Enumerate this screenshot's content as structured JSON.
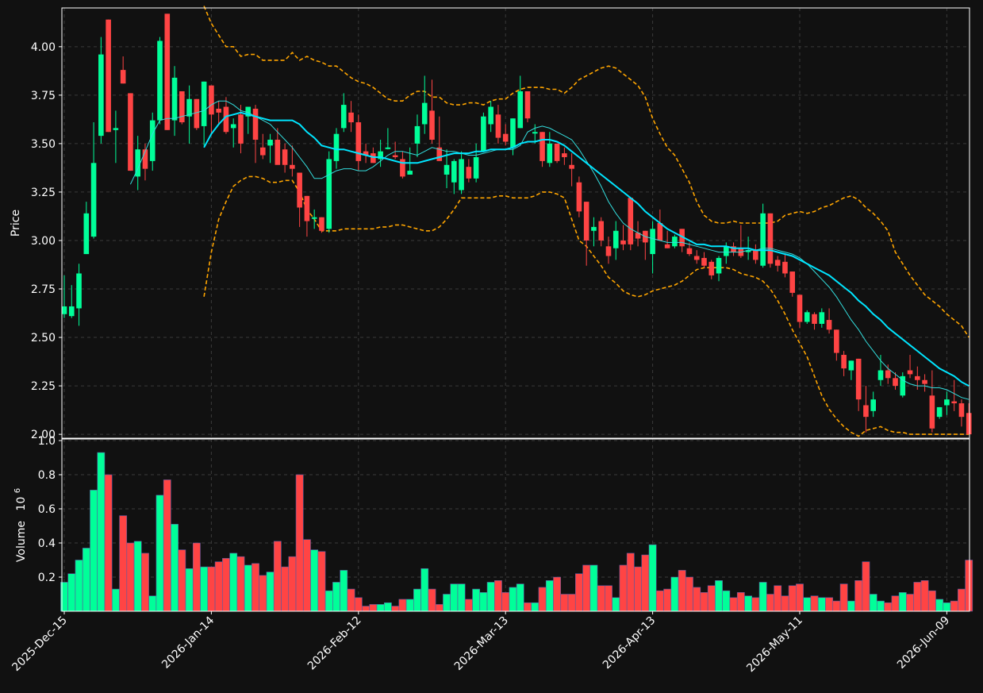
{
  "chart_data": {
    "type": "candlestick",
    "background_color": "#111111",
    "up_color": "#00ff99",
    "down_color": "#ff4444",
    "sma_fast_color": "#33dddd",
    "sma_slow_color": "#00e5ff",
    "bollinger_color": "#ffa500",
    "grid": true,
    "price_panel": {
      "ylabel": "Price",
      "ylim": [
        1.98,
        4.2
      ],
      "yticks": [
        "2.00",
        "2.25",
        "2.50",
        "2.75",
        "3.00",
        "3.25",
        "3.50",
        "3.75",
        "4.00"
      ]
    },
    "volume_panel": {
      "ylabel": "Volume",
      "multiplier_base": "10",
      "multiplier_exp": "6",
      "ylim": [
        0,
        1.0
      ],
      "yticks": [
        "0.2",
        "0.4",
        "0.6",
        "0.8",
        "1.0"
      ]
    },
    "x_ticks": [
      {
        "label": "2025-Dec-15",
        "index": 0
      },
      {
        "label": "2026-Jan-14",
        "index": 20
      },
      {
        "label": "2026-Feb-12",
        "index": 40
      },
      {
        "label": "2026-Mar-13",
        "index": 60
      },
      {
        "label": "2026-Apr-13",
        "index": 80
      },
      {
        "label": "2026-May-11",
        "index": 100
      },
      {
        "label": "2026-Jun-09",
        "index": 120
      }
    ],
    "candles_ohlc": [
      [
        2.62,
        2.82,
        2.6,
        2.66
      ],
      [
        2.61,
        2.77,
        2.6,
        2.66
      ],
      [
        2.65,
        2.88,
        2.56,
        2.83
      ],
      [
        2.93,
        3.2,
        2.93,
        3.14
      ],
      [
        3.02,
        3.61,
        3.01,
        3.4
      ],
      [
        3.54,
        4.05,
        3.5,
        3.96
      ],
      [
        4.14,
        4.14,
        3.56,
        3.56
      ],
      [
        3.57,
        3.67,
        3.4,
        3.58
      ],
      [
        3.88,
        3.95,
        3.81,
        3.81
      ],
      [
        3.76,
        3.76,
        3.36,
        3.36
      ],
      [
        3.33,
        3.54,
        3.26,
        3.47
      ],
      [
        3.47,
        3.5,
        3.31,
        3.37
      ],
      [
        3.41,
        3.66,
        3.36,
        3.62
      ],
      [
        3.62,
        4.05,
        3.6,
        4.03
      ],
      [
        4.17,
        4.17,
        3.57,
        3.57
      ],
      [
        3.62,
        3.9,
        3.54,
        3.84
      ],
      [
        3.77,
        3.77,
        3.6,
        3.61
      ],
      [
        3.64,
        3.8,
        3.5,
        3.73
      ],
      [
        3.73,
        3.73,
        3.57,
        3.58
      ],
      [
        3.59,
        3.82,
        3.49,
        3.82
      ],
      [
        3.8,
        3.8,
        3.55,
        3.65
      ],
      [
        3.68,
        3.72,
        3.6,
        3.66
      ],
      [
        3.69,
        3.74,
        3.55,
        3.56
      ],
      [
        3.58,
        3.63,
        3.48,
        3.6
      ],
      [
        3.65,
        3.7,
        3.45,
        3.5
      ],
      [
        3.64,
        3.69,
        3.55,
        3.69
      ],
      [
        3.68,
        3.7,
        3.4,
        3.52
      ],
      [
        3.48,
        3.55,
        3.42,
        3.44
      ],
      [
        3.49,
        3.55,
        3.4,
        3.52
      ],
      [
        3.52,
        3.58,
        3.4,
        3.39
      ],
      [
        3.47,
        3.5,
        3.35,
        3.39
      ],
      [
        3.39,
        3.49,
        3.33,
        3.37
      ],
      [
        3.35,
        3.35,
        3.07,
        3.17
      ],
      [
        3.23,
        3.23,
        3.02,
        3.1
      ],
      [
        3.12,
        3.16,
        3.06,
        3.12
      ],
      [
        3.12,
        3.12,
        3.04,
        3.05
      ],
      [
        3.06,
        3.46,
        3.04,
        3.42
      ],
      [
        3.41,
        3.58,
        3.37,
        3.55
      ],
      [
        3.58,
        3.76,
        3.56,
        3.7
      ],
      [
        3.66,
        3.72,
        3.56,
        3.61
      ],
      [
        3.61,
        3.65,
        3.36,
        3.41
      ],
      [
        3.46,
        3.5,
        3.4,
        3.44
      ],
      [
        3.45,
        3.48,
        3.4,
        3.4
      ],
      [
        3.42,
        3.52,
        3.38,
        3.46
      ],
      [
        3.48,
        3.58,
        3.47,
        3.48
      ],
      [
        3.44,
        3.51,
        3.42,
        3.43
      ],
      [
        3.42,
        3.46,
        3.32,
        3.33
      ],
      [
        3.34,
        3.48,
        3.34,
        3.36
      ],
      [
        3.5,
        3.65,
        3.43,
        3.59
      ],
      [
        3.6,
        3.85,
        3.55,
        3.71
      ],
      [
        3.67,
        3.83,
        3.5,
        3.52
      ],
      [
        3.48,
        3.64,
        3.46,
        3.41
      ],
      [
        3.34,
        3.47,
        3.27,
        3.39
      ],
      [
        3.3,
        3.42,
        3.24,
        3.41
      ],
      [
        3.26,
        3.46,
        3.24,
        3.42
      ],
      [
        3.38,
        3.42,
        3.3,
        3.32
      ],
      [
        3.32,
        3.5,
        3.3,
        3.43
      ],
      [
        3.46,
        3.66,
        3.46,
        3.64
      ],
      [
        3.6,
        3.72,
        3.56,
        3.69
      ],
      [
        3.65,
        3.7,
        3.5,
        3.53
      ],
      [
        3.55,
        3.6,
        3.49,
        3.51
      ],
      [
        3.48,
        3.63,
        3.44,
        3.63
      ],
      [
        3.58,
        3.85,
        3.58,
        3.77
      ],
      [
        3.77,
        3.77,
        3.61,
        3.63
      ],
      [
        3.56,
        3.6,
        3.5,
        3.56
      ],
      [
        3.56,
        3.56,
        3.38,
        3.41
      ],
      [
        3.4,
        3.56,
        3.38,
        3.5
      ],
      [
        3.5,
        3.5,
        3.4,
        3.41
      ],
      [
        3.45,
        3.48,
        3.39,
        3.43
      ],
      [
        3.39,
        3.45,
        3.28,
        3.37
      ],
      [
        3.3,
        3.33,
        3.12,
        3.15
      ],
      [
        3.2,
        3.2,
        2.87,
        3.0
      ],
      [
        3.05,
        3.12,
        2.97,
        3.07
      ],
      [
        3.1,
        3.12,
        2.97,
        3.0
      ],
      [
        2.97,
        3.02,
        2.88,
        2.92
      ],
      [
        2.96,
        3.1,
        2.9,
        3.05
      ],
      [
        3.0,
        3.08,
        2.95,
        2.98
      ],
      [
        3.22,
        3.22,
        2.95,
        2.98
      ],
      [
        3.04,
        3.1,
        2.97,
        3.01
      ],
      [
        3.05,
        3.05,
        2.9,
        2.99
      ],
      [
        2.93,
        3.1,
        2.83,
        3.06
      ],
      [
        3.09,
        3.16,
        3.01,
        3.0
      ],
      [
        2.98,
        3.05,
        2.96,
        2.96
      ],
      [
        2.97,
        3.03,
        2.96,
        3.02
      ],
      [
        3.06,
        3.06,
        2.94,
        2.97
      ],
      [
        2.96,
        2.99,
        2.92,
        2.93
      ],
      [
        2.92,
        2.95,
        2.88,
        2.9
      ],
      [
        2.91,
        2.94,
        2.86,
        2.87
      ],
      [
        2.89,
        2.9,
        2.8,
        2.82
      ],
      [
        2.83,
        2.92,
        2.79,
        2.91
      ],
      [
        2.92,
        2.99,
        2.88,
        2.97
      ],
      [
        2.97,
        2.99,
        2.92,
        2.94
      ],
      [
        2.96,
        3.08,
        2.91,
        2.92
      ],
      [
        2.94,
        3.02,
        2.9,
        2.95
      ],
      [
        2.95,
        2.98,
        2.88,
        2.9
      ],
      [
        2.87,
        3.19,
        2.86,
        3.14
      ],
      [
        3.14,
        3.14,
        2.86,
        2.88
      ],
      [
        2.9,
        2.92,
        2.84,
        2.87
      ],
      [
        2.89,
        2.93,
        2.81,
        2.83
      ],
      [
        2.84,
        2.84,
        2.71,
        2.73
      ],
      [
        2.72,
        2.72,
        2.55,
        2.58
      ],
      [
        2.58,
        2.64,
        2.57,
        2.63
      ],
      [
        2.62,
        2.63,
        2.54,
        2.57
      ],
      [
        2.57,
        2.65,
        2.55,
        2.63
      ],
      [
        2.59,
        2.65,
        2.52,
        2.54
      ],
      [
        2.54,
        2.54,
        2.38,
        2.42
      ],
      [
        2.41,
        2.43,
        2.3,
        2.34
      ],
      [
        2.33,
        2.38,
        2.28,
        2.38
      ],
      [
        2.39,
        2.39,
        2.12,
        2.18
      ],
      [
        2.15,
        2.25,
        2.01,
        2.09
      ],
      [
        2.12,
        2.22,
        2.09,
        2.18
      ],
      [
        2.28,
        2.41,
        2.25,
        2.33
      ],
      [
        2.33,
        2.36,
        2.26,
        2.29
      ],
      [
        2.29,
        2.32,
        2.23,
        2.25
      ],
      [
        2.2,
        2.32,
        2.19,
        2.3
      ],
      [
        2.33,
        2.41,
        2.29,
        2.31
      ],
      [
        2.3,
        2.35,
        2.23,
        2.28
      ],
      [
        2.28,
        2.31,
        2.22,
        2.26
      ],
      [
        2.2,
        2.33,
        2.01,
        2.03
      ],
      [
        2.09,
        2.14,
        2.08,
        2.14
      ],
      [
        2.15,
        2.22,
        2.1,
        2.18
      ],
      [
        2.17,
        2.28,
        2.12,
        2.16
      ],
      [
        2.16,
        2.18,
        2.04,
        2.09
      ],
      [
        2.11,
        2.16,
        2.0,
        2.0
      ]
    ],
    "volume": [
      0.17,
      0.22,
      0.3,
      0.37,
      0.71,
      0.93,
      0.8,
      0.13,
      0.56,
      0.4,
      0.41,
      0.34,
      0.09,
      0.68,
      0.77,
      0.51,
      0.36,
      0.25,
      0.4,
      0.26,
      0.26,
      0.29,
      0.31,
      0.34,
      0.32,
      0.27,
      0.28,
      0.21,
      0.23,
      0.41,
      0.26,
      0.32,
      0.8,
      0.42,
      0.36,
      0.35,
      0.12,
      0.17,
      0.24,
      0.13,
      0.08,
      0.03,
      0.04,
      0.04,
      0.05,
      0.03,
      0.07,
      0.07,
      0.13,
      0.25,
      0.13,
      0.04,
      0.1,
      0.16,
      0.16,
      0.07,
      0.13,
      0.11,
      0.17,
      0.18,
      0.11,
      0.14,
      0.16,
      0.05,
      0.05,
      0.14,
      0.18,
      0.2,
      0.1,
      0.1,
      0.22,
      0.27,
      0.27,
      0.15,
      0.15,
      0.08,
      0.27,
      0.34,
      0.26,
      0.33,
      0.39,
      0.12,
      0.13,
      0.2,
      0.24,
      0.2,
      0.14,
      0.11,
      0.15,
      0.18,
      0.12,
      0.08,
      0.11,
      0.09,
      0.08,
      0.17,
      0.1,
      0.15,
      0.09,
      0.15,
      0.16,
      0.08,
      0.09,
      0.08,
      0.08,
      0.06,
      0.16,
      0.06,
      0.18,
      0.29,
      0.1,
      0.06,
      0.05,
      0.09,
      0.11,
      0.1,
      0.17,
      0.18,
      0.12,
      0.07,
      0.05,
      0.06,
      0.13,
      0.3
    ],
    "sma_fast": [
      null,
      null,
      null,
      null,
      null,
      null,
      null,
      null,
      null,
      3.29,
      3.37,
      3.46,
      3.55,
      3.62,
      3.63,
      3.63,
      3.64,
      3.65,
      3.66,
      3.67,
      3.7,
      3.72,
      3.72,
      3.7,
      3.67,
      3.66,
      3.64,
      3.62,
      3.6,
      3.56,
      3.52,
      3.48,
      3.43,
      3.38,
      3.32,
      3.32,
      3.34,
      3.36,
      3.37,
      3.37,
      3.36,
      3.36,
      3.38,
      3.41,
      3.44,
      3.46,
      3.46,
      3.45,
      3.44,
      3.46,
      3.48,
      3.47,
      3.46,
      3.46,
      3.45,
      3.44,
      3.44,
      3.45,
      3.46,
      3.47,
      3.47,
      3.47,
      3.49,
      3.56,
      3.58,
      3.59,
      3.58,
      3.56,
      3.54,
      3.52,
      3.47,
      3.41,
      3.35,
      3.28,
      3.2,
      3.14,
      3.09,
      3.06,
      3.04,
      3.02,
      3.01,
      3.0,
      2.99,
      2.99,
      2.99,
      2.98,
      2.97,
      2.96,
      2.95,
      2.94,
      2.94,
      2.94,
      2.94,
      2.95,
      2.95,
      2.96,
      2.96,
      2.95,
      2.94,
      2.93,
      2.91,
      2.88,
      2.84,
      2.8,
      2.76,
      2.71,
      2.65,
      2.59,
      2.54,
      2.48,
      2.43,
      2.38,
      2.34,
      2.31,
      2.28,
      2.26,
      2.25,
      2.25,
      2.24,
      2.24,
      2.23,
      2.21,
      2.19,
      2.18
    ],
    "sma_slow": [
      null,
      null,
      null,
      null,
      null,
      null,
      null,
      null,
      null,
      null,
      null,
      null,
      null,
      null,
      null,
      null,
      null,
      null,
      null,
      3.48,
      3.55,
      3.6,
      3.64,
      3.65,
      3.66,
      3.65,
      3.64,
      3.63,
      3.62,
      3.62,
      3.62,
      3.62,
      3.6,
      3.56,
      3.53,
      3.49,
      3.48,
      3.47,
      3.47,
      3.46,
      3.45,
      3.44,
      3.43,
      3.43,
      3.42,
      3.41,
      3.4,
      3.4,
      3.4,
      3.41,
      3.42,
      3.43,
      3.44,
      3.45,
      3.45,
      3.45,
      3.46,
      3.46,
      3.47,
      3.47,
      3.47,
      3.48,
      3.5,
      3.51,
      3.51,
      3.52,
      3.52,
      3.51,
      3.49,
      3.46,
      3.43,
      3.4,
      3.37,
      3.34,
      3.31,
      3.28,
      3.25,
      3.22,
      3.19,
      3.15,
      3.12,
      3.09,
      3.06,
      3.04,
      3.02,
      3.0,
      2.98,
      2.98,
      2.97,
      2.97,
      2.97,
      2.96,
      2.96,
      2.96,
      2.95,
      2.95,
      2.95,
      2.94,
      2.93,
      2.92,
      2.9,
      2.88,
      2.86,
      2.84,
      2.82,
      2.79,
      2.76,
      2.73,
      2.69,
      2.66,
      2.62,
      2.59,
      2.55,
      2.52,
      2.49,
      2.46,
      2.43,
      2.4,
      2.37,
      2.34,
      2.32,
      2.3,
      2.27,
      2.25
    ],
    "bb_upper": [
      null,
      null,
      null,
      null,
      null,
      null,
      null,
      null,
      null,
      null,
      null,
      null,
      null,
      null,
      null,
      null,
      null,
      null,
      null,
      4.21,
      4.12,
      4.06,
      4.0,
      4.0,
      3.95,
      3.96,
      3.96,
      3.93,
      3.93,
      3.93,
      3.93,
      3.97,
      3.93,
      3.95,
      3.93,
      3.92,
      3.9,
      3.9,
      3.87,
      3.84,
      3.82,
      3.81,
      3.79,
      3.76,
      3.73,
      3.72,
      3.72,
      3.75,
      3.77,
      3.77,
      3.74,
      3.74,
      3.71,
      3.7,
      3.7,
      3.71,
      3.71,
      3.7,
      3.72,
      3.73,
      3.73,
      3.76,
      3.78,
      3.79,
      3.79,
      3.79,
      3.78,
      3.78,
      3.76,
      3.79,
      3.83,
      3.85,
      3.87,
      3.89,
      3.9,
      3.89,
      3.86,
      3.83,
      3.8,
      3.74,
      3.63,
      3.55,
      3.48,
      3.44,
      3.37,
      3.3,
      3.2,
      3.13,
      3.1,
      3.09,
      3.09,
      3.1,
      3.09,
      3.09,
      3.09,
      3.09,
      3.09,
      3.1,
      3.13,
      3.14,
      3.15,
      3.14,
      3.15,
      3.17,
      3.18,
      3.2,
      3.22,
      3.23,
      3.21,
      3.17,
      3.14,
      3.1,
      3.05,
      2.94,
      2.88,
      2.82,
      2.77,
      2.72,
      2.69,
      2.66,
      2.62,
      2.59,
      2.56,
      2.5
    ],
    "bb_lower": [
      null,
      null,
      null,
      null,
      null,
      null,
      null,
      null,
      null,
      null,
      null,
      null,
      null,
      null,
      null,
      null,
      null,
      null,
      null,
      2.71,
      2.94,
      3.11,
      3.2,
      3.28,
      3.31,
      3.33,
      3.33,
      3.32,
      3.3,
      3.3,
      3.31,
      3.31,
      3.25,
      3.16,
      3.11,
      3.05,
      3.05,
      3.05,
      3.06,
      3.06,
      3.06,
      3.06,
      3.06,
      3.07,
      3.07,
      3.08,
      3.08,
      3.07,
      3.06,
      3.05,
      3.05,
      3.07,
      3.11,
      3.16,
      3.22,
      3.22,
      3.22,
      3.22,
      3.22,
      3.23,
      3.23,
      3.22,
      3.22,
      3.22,
      3.23,
      3.25,
      3.25,
      3.24,
      3.22,
      3.11,
      3.0,
      2.97,
      2.92,
      2.87,
      2.81,
      2.78,
      2.74,
      2.72,
      2.71,
      2.72,
      2.74,
      2.75,
      2.76,
      2.77,
      2.79,
      2.82,
      2.85,
      2.86,
      2.86,
      2.86,
      2.86,
      2.85,
      2.83,
      2.82,
      2.81,
      2.79,
      2.75,
      2.69,
      2.62,
      2.54,
      2.47,
      2.4,
      2.3,
      2.2,
      2.13,
      2.08,
      2.04,
      2.01,
      1.99,
      2.02,
      2.03,
      2.04,
      2.02,
      2.01,
      2.01,
      2.0,
      2.0,
      2.0,
      2.0,
      2.0,
      2.0,
      2.0,
      2.0,
      2.0
    ]
  }
}
